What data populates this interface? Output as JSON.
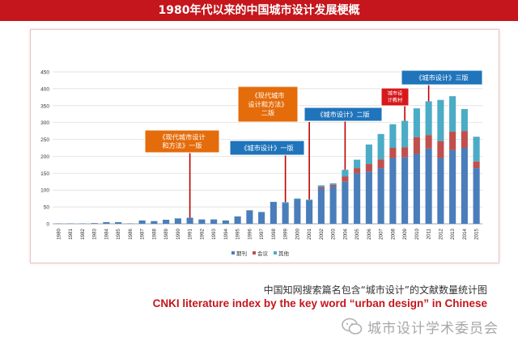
{
  "header": {
    "title": "1980年代以来的中国城市设计发展梗概"
  },
  "chart_data": {
    "type": "bar",
    "stacked": true,
    "categories": [
      "1980",
      "1981",
      "1982",
      "1983",
      "1984",
      "1985",
      "1986",
      "1987",
      "1988",
      "1989",
      "1990",
      "1991",
      "1992",
      "1993",
      "1994",
      "1995",
      "1996",
      "1997",
      "1998",
      "1999",
      "2000",
      "2001",
      "2002",
      "2003",
      "2004",
      "2005",
      "2006",
      "2007",
      "2008",
      "2009",
      "2010",
      "2011",
      "2012",
      "2013",
      "2014",
      "2015"
    ],
    "series": [
      {
        "name": "期刊",
        "color": "#4a7ebb",
        "values": [
          1,
          1,
          1,
          2,
          5,
          5,
          1,
          10,
          8,
          12,
          16,
          18,
          13,
          13,
          10,
          22,
          40,
          35,
          65,
          62,
          73,
          70,
          104,
          110,
          125,
          150,
          155,
          165,
          195,
          197,
          207,
          223,
          195,
          218,
          225,
          165
        ]
      },
      {
        "name": "会议",
        "color": "#c0504d",
        "values": [
          0,
          0,
          0,
          0,
          0,
          0,
          0,
          0,
          0,
          0,
          0,
          0,
          0,
          0,
          0,
          0,
          0,
          0,
          0,
          0,
          0,
          0,
          5,
          5,
          15,
          15,
          22,
          26,
          30,
          30,
          50,
          40,
          50,
          55,
          50,
          20
        ]
      },
      {
        "name": "其他",
        "color": "#4bacc6",
        "values": [
          0,
          0,
          0,
          0,
          0,
          0,
          0,
          0,
          0,
          0,
          0,
          0,
          0,
          0,
          0,
          0,
          0,
          0,
          0,
          2,
          2,
          2,
          5,
          5,
          20,
          25,
          58,
          75,
          70,
          78,
          85,
          100,
          122,
          105,
          65,
          73
        ]
      }
    ],
    "ylim": [
      0,
      450
    ],
    "yticks": [
      0,
      50,
      100,
      150,
      200,
      250,
      300,
      350,
      400,
      450
    ],
    "grid": true,
    "legend": "bottom",
    "annotations": [
      {
        "text": [
          "《现代城市设计",
          "和方法》一版"
        ],
        "year": "1991",
        "style": "orange"
      },
      {
        "text": [
          "《城市设计》一版"
        ],
        "year": "1999",
        "style": "blue"
      },
      {
        "text": [
          "《现代城市",
          "设计和方法》",
          "二版"
        ],
        "year": "2001",
        "style": "orange"
      },
      {
        "text": [
          "《城市设计》二版"
        ],
        "year": "2004",
        "style": "blue"
      },
      {
        "text": [
          "城市设",
          "计教材"
        ],
        "year": "2009",
        "style": "red"
      },
      {
        "text": [
          "《城市设计》三版"
        ],
        "year": "2011",
        "style": "blue"
      }
    ]
  },
  "caption": {
    "cn": "中国知网搜索篇名包含“城市设计”的文献数量统计图",
    "en": "CNKI literature index by the key word  “urban design” in Chinese"
  },
  "watermark": {
    "text": "城市设计学术委员会"
  }
}
